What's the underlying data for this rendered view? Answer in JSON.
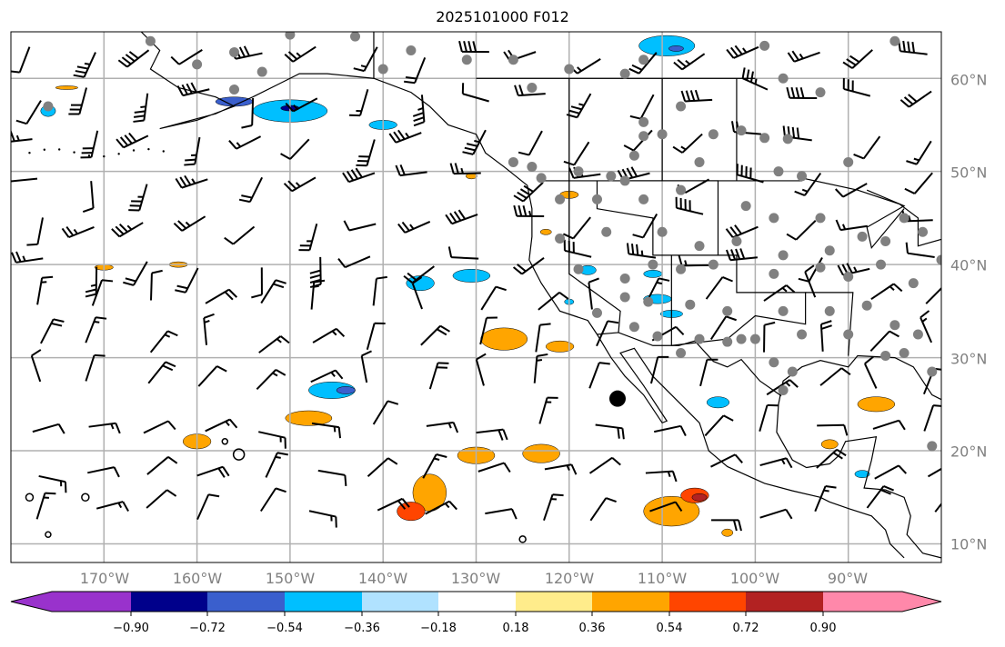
{
  "title": "2025101000 F012",
  "map": {
    "extent_lon": [
      -180,
      -80
    ],
    "extent_lat": [
      8,
      65
    ],
    "lon_labels": [
      "170°W",
      "160°W",
      "150°W",
      "140°W",
      "130°W",
      "120°W",
      "110°W",
      "100°W",
      "90°W"
    ],
    "lat_labels": [
      "60°N",
      "50°N",
      "40°N",
      "30°N",
      "20°N",
      "10°N"
    ],
    "grid_color": "#b0b0b0",
    "station_color": "#808080"
  },
  "colorbar": {
    "ticks": [
      "−0.90",
      "−0.72",
      "−0.54",
      "−0.36",
      "−0.18",
      "0.18",
      "0.36",
      "0.54",
      "0.72",
      "0.90"
    ],
    "colors": [
      "#9932cc",
      "#00008b",
      "#3a5fcd",
      "#00bfff",
      "#b0e2ff",
      "#ffffff",
      "#ffec8b",
      "#ffa500",
      "#ff4500",
      "#b22222",
      "#ff88aa"
    ]
  }
}
